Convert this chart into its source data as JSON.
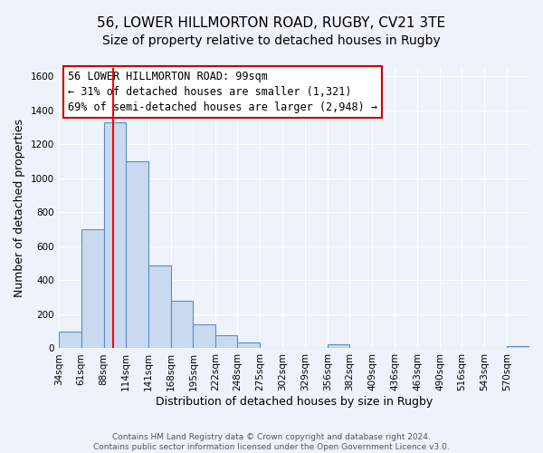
{
  "title": "56, LOWER HILLMORTON ROAD, RUGBY, CV21 3TE",
  "subtitle": "Size of property relative to detached houses in Rugby",
  "xlabel": "Distribution of detached houses by size in Rugby",
  "ylabel": "Number of detached properties",
  "bin_labels": [
    "34sqm",
    "61sqm",
    "88sqm",
    "114sqm",
    "141sqm",
    "168sqm",
    "195sqm",
    "222sqm",
    "248sqm",
    "275sqm",
    "302sqm",
    "329sqm",
    "356sqm",
    "382sqm",
    "409sqm",
    "436sqm",
    "463sqm",
    "490sqm",
    "516sqm",
    "543sqm",
    "570sqm"
  ],
  "bin_edges": [
    34,
    61,
    88,
    114,
    141,
    168,
    195,
    222,
    248,
    275,
    302,
    329,
    356,
    382,
    409,
    436,
    463,
    490,
    516,
    543,
    570
  ],
  "bar_heights": [
    100,
    700,
    1330,
    1100,
    490,
    280,
    140,
    75,
    35,
    0,
    0,
    0,
    25,
    0,
    0,
    0,
    0,
    0,
    0,
    0,
    15
  ],
  "bar_color": "#c9d9f0",
  "bar_edge_color": "#5a8fc7",
  "red_line_x": 99,
  "ylim": [
    0,
    1650
  ],
  "yticks": [
    0,
    200,
    400,
    600,
    800,
    1000,
    1200,
    1400,
    1600
  ],
  "annotation_line1": "56 LOWER HILLMORTON ROAD: 99sqm",
  "annotation_line2": "← 31% of detached houses are smaller (1,321)",
  "annotation_line3": "69% of semi-detached houses are larger (2,948) →",
  "annotation_box_color": "#ffffff",
  "annotation_border_color": "#cc0000",
  "footer_line1": "Contains HM Land Registry data © Crown copyright and database right 2024.",
  "footer_line2": "Contains public sector information licensed under the Open Government Licence v3.0.",
  "background_color": "#eef2fa",
  "grid_color": "#ffffff",
  "title_fontsize": 11,
  "subtitle_fontsize": 10,
  "axis_label_fontsize": 9,
  "tick_label_fontsize": 7.5,
  "annotation_fontsize": 8.5,
  "footer_fontsize": 6.5
}
